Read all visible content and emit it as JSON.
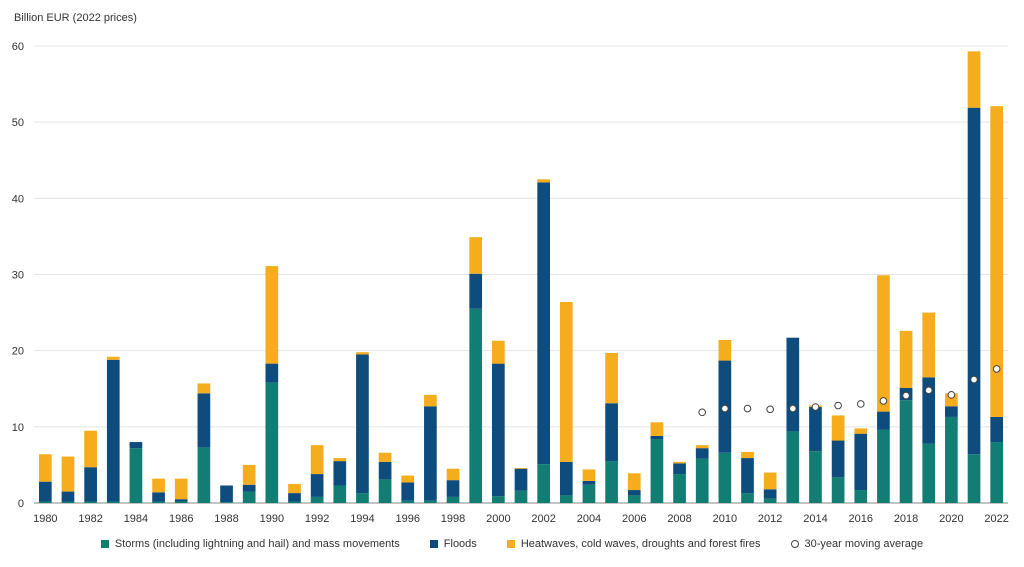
{
  "chart_data": {
    "type": "bar",
    "stacked": true,
    "ylabel": "Billion EUR (2022 prices)",
    "ylim": [
      0,
      60
    ],
    "yticks": [
      0,
      10,
      20,
      30,
      40,
      50,
      60
    ],
    "grid": true,
    "legend_position": "bottom",
    "categories": [
      "1980",
      "1981",
      "1982",
      "1983",
      "1984",
      "1985",
      "1986",
      "1987",
      "1988",
      "1989",
      "1990",
      "1991",
      "1992",
      "1993",
      "1994",
      "1995",
      "1996",
      "1997",
      "1998",
      "1999",
      "2000",
      "2001",
      "2002",
      "2003",
      "2004",
      "2005",
      "2006",
      "2007",
      "2008",
      "2009",
      "2010",
      "2011",
      "2012",
      "2013",
      "2014",
      "2015",
      "2016",
      "2017",
      "2018",
      "2019",
      "2020",
      "2021",
      "2022"
    ],
    "xtick_labels": [
      "1980",
      "1982",
      "1984",
      "1986",
      "1988",
      "1990",
      "1992",
      "1994",
      "1996",
      "1998",
      "2000",
      "2002",
      "2004",
      "2006",
      "2008",
      "2010",
      "2012",
      "2014",
      "2016",
      "2018",
      "2020",
      "2022"
    ],
    "series": [
      {
        "name": "Storms (including lightning and hail) and mass movements",
        "color": "#127d73",
        "values": [
          0.2,
          0.2,
          0.2,
          0.2,
          7.2,
          0.2,
          0.2,
          7.3,
          0.1,
          1.5,
          15.8,
          0.2,
          0.8,
          2.3,
          1.3,
          3.1,
          0.3,
          0.3,
          0.8,
          25.5,
          0.9,
          1.6,
          5.1,
          1.0,
          2.4,
          5.5,
          1.0,
          8.4,
          3.8,
          5.8,
          6.6,
          1.3,
          0.6,
          9.4,
          6.8,
          3.4,
          1.7,
          9.6,
          13.5,
          7.8,
          11.3,
          6.4,
          8.0
        ]
      },
      {
        "name": "Floods",
        "color": "#0d4c7d",
        "values": [
          2.6,
          1.3,
          4.5,
          18.6,
          0.8,
          1.2,
          0.3,
          7.1,
          2.2,
          0.9,
          2.5,
          1.1,
          3.0,
          3.2,
          18.2,
          2.3,
          2.4,
          12.4,
          2.2,
          4.6,
          17.4,
          2.9,
          37.0,
          4.4,
          0.5,
          7.6,
          0.7,
          0.4,
          1.4,
          1.4,
          12.1,
          4.6,
          1.2,
          12.3,
          5.8,
          4.8,
          7.4,
          2.4,
          1.6,
          8.7,
          1.4,
          45.5,
          3.3
        ]
      },
      {
        "name": "Heatwaves, cold waves, droughts and forest fires",
        "color": "#f5ad1e",
        "values": [
          3.6,
          4.6,
          4.8,
          0.4,
          0.0,
          1.8,
          2.7,
          1.3,
          0.0,
          2.6,
          12.8,
          1.2,
          3.8,
          0.4,
          0.3,
          1.2,
          0.9,
          1.5,
          1.5,
          4.8,
          3.0,
          0.1,
          0.4,
          21.0,
          1.5,
          6.6,
          2.2,
          1.8,
          0.2,
          0.4,
          2.7,
          0.8,
          2.2,
          0.0,
          0.2,
          3.3,
          0.7,
          17.9,
          7.5,
          8.5,
          1.7,
          7.4,
          40.8
        ]
      }
    ],
    "moving_average": {
      "name": "30-year moving average",
      "x": [
        "2009",
        "2010",
        "2011",
        "2012",
        "2013",
        "2014",
        "2015",
        "2016",
        "2017",
        "2018",
        "2019",
        "2020",
        "2021",
        "2022"
      ],
      "values": [
        11.9,
        12.4,
        12.4,
        12.3,
        12.4,
        12.6,
        12.8,
        13.0,
        13.4,
        14.1,
        14.8,
        14.2,
        16.2,
        17.6
      ]
    }
  }
}
